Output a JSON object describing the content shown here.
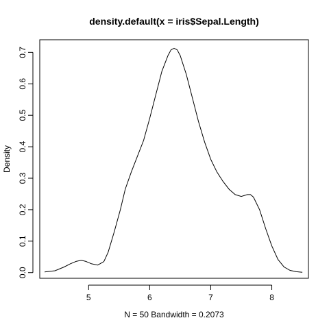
{
  "chart_data": {
    "type": "line",
    "title": "density.default(x = iris$Sepal.Length)",
    "xlabel": "N = 50   Bandwidth = 0.2073",
    "ylabel": "Density",
    "xlim": [
      4.2,
      8.6
    ],
    "ylim": [
      -0.018,
      0.74
    ],
    "x_ticks": [
      5,
      6,
      7,
      8
    ],
    "x_tick_labels": [
      "5",
      "6",
      "7",
      "8"
    ],
    "y_ticks": [
      0.0,
      0.1,
      0.2,
      0.3,
      0.4,
      0.5,
      0.6,
      0.7
    ],
    "y_tick_labels": [
      "0.0",
      "0.1",
      "0.2",
      "0.3",
      "0.4",
      "0.5",
      "0.6",
      "0.7"
    ],
    "grid": false,
    "series": [
      {
        "x": [
          4.28,
          4.45,
          4.6,
          4.7,
          4.8,
          4.88,
          4.95,
          5.05,
          5.15,
          5.25,
          5.32,
          5.42,
          5.52,
          5.6,
          5.7,
          5.8,
          5.9,
          6.0,
          6.1,
          6.2,
          6.3,
          6.35,
          6.4,
          6.45,
          6.5,
          6.6,
          6.7,
          6.8,
          6.9,
          7.0,
          7.1,
          7.2,
          7.3,
          7.4,
          7.5,
          7.6,
          7.65,
          7.7,
          7.8,
          7.9,
          8.0,
          8.1,
          8.2,
          8.3,
          8.4,
          8.5
        ],
        "y": [
          0.002,
          0.006,
          0.018,
          0.028,
          0.036,
          0.039,
          0.036,
          0.028,
          0.024,
          0.035,
          0.065,
          0.13,
          0.2,
          0.265,
          0.32,
          0.37,
          0.42,
          0.49,
          0.565,
          0.64,
          0.69,
          0.708,
          0.713,
          0.708,
          0.69,
          0.63,
          0.555,
          0.48,
          0.415,
          0.36,
          0.32,
          0.29,
          0.265,
          0.248,
          0.242,
          0.248,
          0.248,
          0.24,
          0.2,
          0.14,
          0.085,
          0.042,
          0.018,
          0.007,
          0.003,
          0.001
        ]
      }
    ]
  }
}
